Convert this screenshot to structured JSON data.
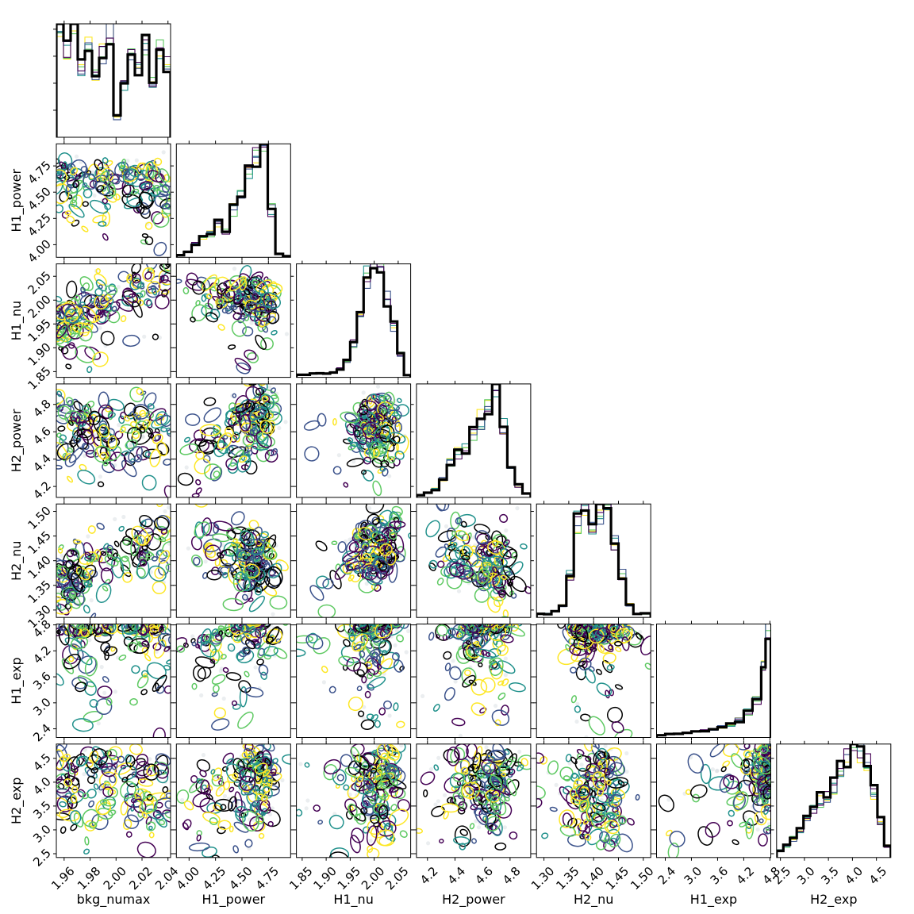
{
  "chart_data": {
    "type": "corner",
    "parameters": [
      "bkg_numax",
      "H1_power",
      "H1_nu",
      "H2_power",
      "H2_nu",
      "H1_exp",
      "H2_exp"
    ],
    "axis_ranges": {
      "bkg_numax": [
        1.954,
        2.042
      ],
      "H1_power": [
        3.88,
        4.96
      ],
      "H1_nu": [
        1.838,
        2.076
      ],
      "H2_power": [
        4.12,
        4.95
      ],
      "H2_nu": [
        1.285,
        1.515
      ],
      "H1_exp": [
        2.2,
        4.82
      ],
      "H2_exp": [
        2.42,
        4.8
      ]
    },
    "ticks": {
      "bkg_numax": {
        "values": [
          1.96,
          1.98,
          2.0,
          2.02,
          2.04
        ],
        "labels": [
          "1.96",
          "1.98",
          "2.00",
          "2.02",
          "2.04"
        ]
      },
      "H1_power": {
        "values": [
          4.0,
          4.25,
          4.5,
          4.75
        ],
        "labels": [
          "4.00",
          "4.25",
          "4.50",
          "4.75"
        ]
      },
      "H1_nu": {
        "values": [
          1.85,
          1.9,
          1.95,
          2.0,
          2.05
        ],
        "labels": [
          "1.85",
          "1.90",
          "1.95",
          "2.00",
          "2.05"
        ]
      },
      "H2_power": {
        "values": [
          4.2,
          4.4,
          4.6,
          4.8
        ],
        "labels": [
          "4.2",
          "4.4",
          "4.6",
          "4.8"
        ]
      },
      "H2_nu": {
        "values": [
          1.3,
          1.35,
          1.4,
          1.45,
          1.5
        ],
        "labels": [
          "1.30",
          "1.35",
          "1.40",
          "1.45",
          "1.50"
        ]
      },
      "H1_exp": {
        "values": [
          2.4,
          3.0,
          3.6,
          4.2,
          4.8
        ],
        "labels": [
          "2.4",
          "3.0",
          "3.6",
          "4.2",
          "4.8"
        ]
      },
      "H2_exp": {
        "values": [
          2.5,
          3.0,
          3.5,
          4.0,
          4.5
        ],
        "labels": [
          "2.5",
          "3.0",
          "3.5",
          "4.0",
          "4.5"
        ]
      }
    },
    "series_colors": [
      "#000000",
      "#440154",
      "#3b528b",
      "#21918c",
      "#5ec962",
      "#fde725"
    ],
    "histograms": {
      "bkg_numax": {
        "bin_edges": [
          1.954,
          1.9595,
          1.965,
          1.9705,
          1.976,
          1.9815,
          1.987,
          1.9925,
          1.998,
          2.0035,
          2.009,
          2.0145,
          2.02,
          2.0255,
          2.031,
          2.0365,
          2.042
        ],
        "counts": [
          1.0,
          0.78,
          0.95,
          0.62,
          0.88,
          0.55,
          0.74,
          0.92,
          0.18,
          0.45,
          0.7,
          0.6,
          0.82,
          0.48,
          0.76,
          0.66
        ]
      },
      "H1_power": {
        "bin_edges": [
          3.88,
          3.952,
          4.024,
          4.096,
          4.168,
          4.24,
          4.312,
          4.384,
          4.456,
          4.528,
          4.6,
          4.672,
          4.744,
          4.816,
          4.888,
          4.96
        ],
        "counts": [
          0.02,
          0.05,
          0.12,
          0.16,
          0.2,
          0.28,
          0.22,
          0.4,
          0.55,
          0.7,
          0.88,
          0.96,
          0.4,
          0.03,
          0.01
        ]
      },
      "H1_nu": {
        "bin_edges": [
          1.838,
          1.852,
          1.866,
          1.88,
          1.894,
          1.908,
          1.922,
          1.936,
          1.95,
          1.964,
          1.978,
          1.992,
          2.006,
          2.02,
          2.034,
          2.048,
          2.062,
          2.076
        ],
        "counts": [
          0.02,
          0.02,
          0.03,
          0.03,
          0.03,
          0.04,
          0.07,
          0.14,
          0.28,
          0.55,
          0.82,
          0.95,
          0.88,
          0.66,
          0.42,
          0.2,
          0.02
        ]
      },
      "H2_power": {
        "bin_edges": [
          4.12,
          4.175,
          4.23,
          4.285,
          4.34,
          4.395,
          4.45,
          4.505,
          4.56,
          4.615,
          4.67,
          4.725,
          4.78,
          4.835,
          4.89,
          4.95
        ],
        "counts": [
          0.02,
          0.04,
          0.07,
          0.15,
          0.3,
          0.38,
          0.42,
          0.55,
          0.66,
          0.8,
          0.97,
          0.62,
          0.28,
          0.1,
          0.03
        ]
      },
      "H2_nu": {
        "bin_edges": [
          1.285,
          1.3,
          1.315,
          1.33,
          1.345,
          1.36,
          1.375,
          1.39,
          1.405,
          1.42,
          1.435,
          1.45,
          1.465,
          1.48,
          1.495,
          1.515
        ],
        "counts": [
          0.03,
          0.03,
          0.05,
          0.1,
          0.35,
          0.78,
          0.92,
          0.7,
          0.86,
          0.84,
          0.62,
          0.35,
          0.1,
          0.03,
          0.03
        ]
      },
      "H1_exp": {
        "bin_edges": [
          2.2,
          2.4,
          2.6,
          2.8,
          3.0,
          3.2,
          3.4,
          3.6,
          3.8,
          4.0,
          4.2,
          4.4,
          4.6,
          4.7,
          4.82
        ],
        "counts": [
          0.02,
          0.03,
          0.03,
          0.04,
          0.05,
          0.06,
          0.07,
          0.09,
          0.11,
          0.15,
          0.22,
          0.33,
          0.58,
          0.98
        ]
      },
      "H2_exp": {
        "bin_edges": [
          2.42,
          2.56,
          2.7,
          2.84,
          2.98,
          3.12,
          3.26,
          3.4,
          3.54,
          3.68,
          3.82,
          3.96,
          4.1,
          4.24,
          4.38,
          4.52,
          4.66,
          4.8
        ],
        "counts": [
          0.06,
          0.1,
          0.16,
          0.24,
          0.34,
          0.42,
          0.5,
          0.52,
          0.62,
          0.74,
          0.88,
          0.98,
          0.95,
          0.8,
          0.56,
          0.32,
          0.1
        ]
      }
    },
    "correlations": {
      "H1_power-bkg_numax": -0.05,
      "H1_nu-bkg_numax": 0.75,
      "H1_nu-H1_power": -0.1,
      "H2_power-bkg_numax": -0.08,
      "H2_power-H1_power": 0.85,
      "H2_power-H1_nu": 0.05,
      "H2_nu-bkg_numax": 0.75,
      "H2_nu-H1_power": -0.5,
      "H2_nu-H1_nu": 0.6,
      "H2_nu-H2_power": -0.55,
      "H1_exp-bkg_numax": 0.0,
      "H1_exp-H1_power": 0.55,
      "H1_exp-H1_nu": 0.3,
      "H1_exp-H2_power": 0.3,
      "H1_exp-H2_nu": -0.2,
      "H2_exp-bkg_numax": -0.2,
      "H2_exp-H1_power": 0.45,
      "H2_exp-H1_nu": 0.1,
      "H2_exp-H2_power": 0.1,
      "H2_exp-H2_nu": 0.0,
      "H2_exp-H1_exp": 0.4
    },
    "grid": false,
    "legend": "none"
  }
}
